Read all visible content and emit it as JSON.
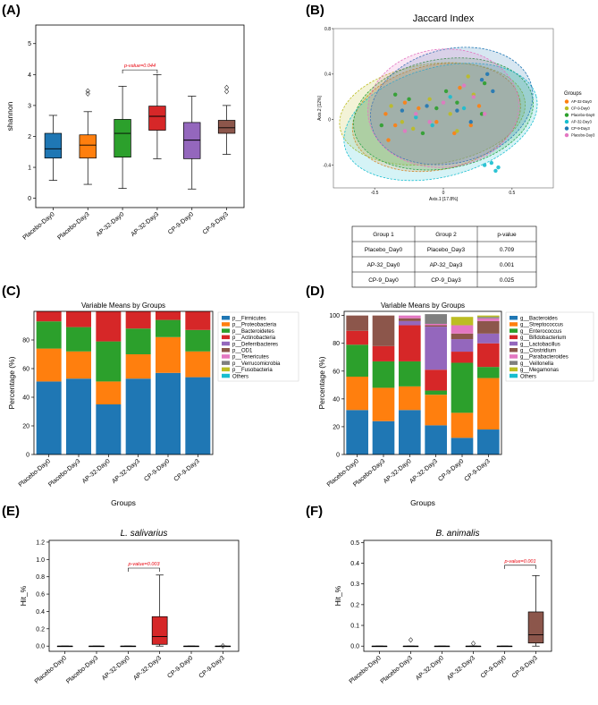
{
  "panel_labels": {
    "a": "(A)",
    "b": "(B)",
    "c": "(C)",
    "d": "(D)",
    "e": "(E)",
    "f": "(F)"
  },
  "groups": [
    "Placebo-Day0",
    "Placebo-Day3",
    "AP-32-Day0",
    "AP-32-Day3",
    "CP-9-Day0",
    "CP-9-Day3"
  ],
  "colors": {
    "blue": "#1f77b4",
    "orange": "#ff7f0e",
    "green": "#2ca02c",
    "red": "#d62728",
    "purple": "#9467bd",
    "brown": "#8c564b",
    "pink": "#e377c2",
    "gray": "#7f7f7f",
    "olive": "#bcbd22",
    "cyan": "#17becf",
    "pval": "#e8000b"
  },
  "chart_data": [
    {
      "id": "A",
      "type": "box",
      "ylabel": "shannon",
      "ylim": [
        -0.3,
        5.6
      ],
      "yticks": [
        0,
        1,
        2,
        3,
        4,
        5
      ],
      "categories": [
        "Placebo-Day0",
        "Placebo-Day3",
        "AP-32-Day0",
        "AP-32-Day3",
        "CP-9-Day0",
        "CP-9-Day3"
      ],
      "boxes": [
        {
          "whislo": 0.58,
          "q1": 1.3,
          "med": 1.6,
          "q3": 2.1,
          "whishi": 2.68,
          "fliers": []
        },
        {
          "whislo": 0.45,
          "q1": 1.3,
          "med": 1.72,
          "q3": 2.05,
          "whishi": 2.8,
          "fliers": [
            3.38,
            3.47
          ]
        },
        {
          "whislo": 0.32,
          "q1": 1.33,
          "med": 2.1,
          "q3": 2.55,
          "whishi": 3.62,
          "fliers": []
        },
        {
          "whislo": 1.28,
          "q1": 2.2,
          "med": 2.65,
          "q3": 2.98,
          "whishi": 4.0,
          "fliers": []
        },
        {
          "whislo": 0.3,
          "q1": 1.28,
          "med": 1.88,
          "q3": 2.45,
          "whishi": 3.3,
          "fliers": []
        },
        {
          "whislo": 1.42,
          "q1": 2.1,
          "med": 2.28,
          "q3": 2.52,
          "whishi": 3.0,
          "fliers": [
            3.45,
            3.58
          ]
        }
      ],
      "significance": {
        "from": 2,
        "to": 3,
        "y": 4.15,
        "label": "p-value=0.044"
      }
    },
    {
      "id": "B",
      "type": "scatter",
      "title": "Jaccard Index",
      "xlabel": "Axis.1  [17.8%]",
      "ylabel": "Axis.2  [12%]",
      "xlim": [
        -0.8,
        0.8
      ],
      "ylim": [
        -0.6,
        0.8
      ],
      "xticks": [
        -0.5,
        0,
        0.5
      ],
      "yticks": [
        -0.4,
        0,
        0.4,
        0.8
      ],
      "legend_title": "Groups",
      "series": [
        {
          "name": "AP-32-Day0",
          "values": [
            [
              -0.42,
              0.05
            ],
            [
              -0.35,
              -0.05
            ],
            [
              -0.18,
              0.1
            ],
            [
              -0.05,
              -0.02
            ],
            [
              0.12,
              0.28
            ],
            [
              0.2,
              -0.05
            ],
            [
              -0.28,
              0.15
            ],
            [
              0.08,
              -0.12
            ],
            [
              -0.4,
              -0.18
            ],
            [
              0.26,
              0.12
            ]
          ]
        },
        {
          "name": "CP-9-Day0",
          "values": [
            [
              -0.38,
              0.12
            ],
            [
              -0.22,
              -0.08
            ],
            [
              -0.1,
              0.18
            ],
            [
              0.05,
              0.05
            ],
            [
              0.18,
              0.38
            ],
            [
              -0.3,
              -0.02
            ],
            [
              0.1,
              -0.1
            ],
            [
              0.22,
              0.22
            ]
          ]
        },
        {
          "name": "Placebo-Day0",
          "values": [
            [
              -0.45,
              -0.05
            ],
            [
              -0.25,
              0.18
            ],
            [
              -0.05,
              0.1
            ],
            [
              0.1,
              0.15
            ],
            [
              0.3,
              0.32
            ],
            [
              -0.15,
              -0.12
            ],
            [
              0.28,
              0.05
            ],
            [
              -0.35,
              0.22
            ],
            [
              0.02,
              0.25
            ]
          ]
        },
        {
          "name": "AP-32-Day3",
          "values": [
            [
              0.35,
              -0.38
            ],
            [
              0.4,
              -0.42
            ],
            [
              0.38,
              -0.45
            ],
            [
              0.3,
              -0.4
            ],
            [
              -0.2,
              0.02
            ],
            [
              0.15,
              0.1
            ],
            [
              0.05,
              0.2
            ],
            [
              -0.08,
              -0.05
            ]
          ]
        },
        {
          "name": "CP-9-Day3",
          "values": [
            [
              0.32,
              0.4
            ],
            [
              0.28,
              0.35
            ],
            [
              0.1,
              0.08
            ],
            [
              -0.12,
              0.12
            ],
            [
              0.2,
              -0.02
            ],
            [
              0.36,
              0.25
            ],
            [
              -0.3,
              0.08
            ]
          ]
        },
        {
          "name": "Placebo-Day3",
          "values": [
            [
              -0.2,
              0.05
            ],
            [
              0.0,
              0.15
            ],
            [
              0.22,
              0.2
            ],
            [
              -0.1,
              -0.02
            ],
            [
              0.3,
              0.05
            ],
            [
              0.15,
              0.3
            ],
            [
              -0.28,
              -0.1
            ]
          ]
        }
      ],
      "ellipses": [
        {
          "name": "AP-32-Day0",
          "cx": -0.05,
          "cy": 0.02,
          "rx": 0.62,
          "ry": 0.46,
          "angle": -12
        },
        {
          "name": "CP-9-Day0",
          "cx": -0.08,
          "cy": 0.05,
          "rx": 0.68,
          "ry": 0.44,
          "angle": -8
        },
        {
          "name": "Placebo-Day0",
          "cx": 0.0,
          "cy": 0.05,
          "rx": 0.66,
          "ry": 0.48,
          "angle": -10
        },
        {
          "name": "AP-32-Day3",
          "cx": -0.02,
          "cy": -0.02,
          "rx": 0.72,
          "ry": 0.48,
          "angle": -15
        },
        {
          "name": "CP-9-Day3",
          "cx": 0.06,
          "cy": 0.12,
          "rx": 0.6,
          "ry": 0.5,
          "angle": -14
        },
        {
          "name": "Placebo-Day3",
          "cx": 0.0,
          "cy": 0.1,
          "rx": 0.55,
          "ry": 0.52,
          "angle": -5
        }
      ],
      "table": {
        "headers": [
          "Group 1",
          "Group 2",
          "p-value"
        ],
        "rows": [
          {
            "g1": "Placebo_Day0",
            "g2": "Placebo_Day3",
            "p": "0.709",
            "sig": false
          },
          {
            "g1": "AP-32_Day0",
            "g2": "AP-32_Day3",
            "p": "0.001",
            "sig": true
          },
          {
            "g1": "CP-9_Day0",
            "g2": "CP-9_Day3",
            "p": "0.025",
            "sig": true
          }
        ]
      }
    },
    {
      "id": "C",
      "type": "stacked_bar",
      "title": "Variable Means by Groups",
      "xlabel": "Groups",
      "ylabel": "Percentage (%)",
      "ylim": [
        0,
        100
      ],
      "yticks": [
        0,
        20,
        40,
        60,
        80
      ],
      "categories": [
        "Placebo-Day0",
        "Placebo-Day3",
        "AP-32-Day0",
        "AP-32-Day3",
        "CP-9-Day0",
        "CP-9-Day3"
      ],
      "series": [
        {
          "name": "p__Firmicutes",
          "values": [
            51,
            53,
            35,
            53,
            57,
            54
          ]
        },
        {
          "name": "p__Proteobacteria",
          "values": [
            23,
            19,
            16,
            17,
            25,
            18
          ]
        },
        {
          "name": "p__Bacteroidetes",
          "values": [
            19,
            17,
            28,
            18,
            12,
            15
          ]
        },
        {
          "name": "p__Actinobacteria",
          "values": [
            7,
            11,
            21,
            12,
            6,
            13
          ]
        },
        {
          "name": "p__Deferribacteres",
          "values": [
            0,
            0,
            0,
            0,
            0,
            0
          ]
        },
        {
          "name": "p__OD1",
          "values": [
            0,
            0,
            0,
            0,
            0,
            0
          ]
        },
        {
          "name": "p__Tenericutes",
          "values": [
            0,
            0,
            0,
            0,
            0,
            0
          ]
        },
        {
          "name": "p__Verrucomicrobia",
          "values": [
            0,
            0,
            0,
            0,
            0,
            0
          ]
        },
        {
          "name": "p__Fusobacteria",
          "values": [
            0,
            0,
            0,
            0,
            0,
            0
          ]
        },
        {
          "name": "Others",
          "values": [
            0,
            0,
            0,
            0,
            0,
            0
          ]
        }
      ]
    },
    {
      "id": "D",
      "type": "stacked_bar",
      "title": "Variable Means by Groups",
      "xlabel": "Groups",
      "ylabel": "Percentage (%)",
      "ylim": [
        0,
        103
      ],
      "yticks": [
        0,
        20,
        40,
        60,
        80,
        100
      ],
      "categories": [
        "Placebo-Day0",
        "Placebo-Day3",
        "AP-32-Day0",
        "AP-32-Day3",
        "CP-9-Day0",
        "CP-9-Day3"
      ],
      "series": [
        {
          "name": "g__Bacteroides",
          "values": [
            32,
            24,
            32,
            21,
            12,
            18
          ]
        },
        {
          "name": "g__Streptococcus",
          "values": [
            24,
            24,
            17,
            22,
            18,
            37
          ]
        },
        {
          "name": "g__Enterococcus",
          "values": [
            23,
            19,
            18,
            3,
            36,
            8
          ]
        },
        {
          "name": "g__Bifidobacterium",
          "values": [
            10,
            11,
            26,
            15,
            8,
            17
          ]
        },
        {
          "name": "g__Lactobacillus",
          "values": [
            0,
            0,
            3,
            31,
            9,
            7
          ]
        },
        {
          "name": "g__Clostridium",
          "values": [
            11,
            22,
            2,
            1,
            4,
            9
          ]
        },
        {
          "name": "g__Parabacteroides",
          "values": [
            0,
            0,
            2,
            1,
            6,
            2
          ]
        },
        {
          "name": "g__Veillonella",
          "values": [
            0,
            0,
            0,
            7,
            0,
            1
          ]
        },
        {
          "name": "g__Megamonas",
          "values": [
            0,
            0,
            0,
            0,
            6,
            1
          ]
        },
        {
          "name": "Others",
          "values": [
            0,
            0,
            0,
            0,
            0,
            0
          ]
        }
      ]
    },
    {
      "id": "E",
      "type": "box",
      "title": "L. salivarius",
      "ylabel": "Hit_%",
      "ylim": [
        -0.06,
        1.22
      ],
      "yticks": [
        0.0,
        0.2,
        0.4,
        0.6,
        0.8,
        1.0,
        1.2
      ],
      "ytick_labels": [
        "0.0",
        "0.2",
        "0.4",
        "0.6",
        "0.8",
        "1.0",
        "1.2"
      ],
      "categories": [
        "Placebo-Day0",
        "Placebo-Day3",
        "AP-32-Day0",
        "AP-32-Day3",
        "CP-9-Day0",
        "CP-9-Day3"
      ],
      "boxes": [
        {
          "whislo": 0,
          "q1": 0,
          "med": 0,
          "q3": 0,
          "whishi": 0,
          "fliers": []
        },
        {
          "whislo": 0,
          "q1": 0,
          "med": 0,
          "q3": 0,
          "whishi": 0,
          "fliers": []
        },
        {
          "whislo": 0,
          "q1": 0,
          "med": 0,
          "q3": 0,
          "whishi": 0,
          "fliers": []
        },
        {
          "whislo": 0,
          "q1": 0.02,
          "med": 0.11,
          "q3": 0.34,
          "whishi": 0.82,
          "fliers": []
        },
        {
          "whislo": 0,
          "q1": 0,
          "med": 0,
          "q3": 0,
          "whishi": 0,
          "fliers": []
        },
        {
          "whislo": 0,
          "q1": 0,
          "med": 0,
          "q3": 0,
          "whishi": 0,
          "fliers": [
            0.003
          ]
        }
      ],
      "significance": {
        "from": 2,
        "to": 3,
        "y": 0.9,
        "label": "p-value=0.003"
      }
    },
    {
      "id": "F",
      "type": "box",
      "title": "B. animalis",
      "ylabel": "Hit_%",
      "ylim": [
        -0.025,
        0.51
      ],
      "yticks": [
        0.0,
        0.1,
        0.2,
        0.3,
        0.4,
        0.5
      ],
      "ytick_labels": [
        "0.0",
        "0.1",
        "0.2",
        "0.3",
        "0.4",
        "0.5"
      ],
      "categories": [
        "Placebo-Day0",
        "Placebo-Day3",
        "AP-32-Day0",
        "AP-32-Day3",
        "CP-9-Day0",
        "CP-9-Day3"
      ],
      "boxes": [
        {
          "whislo": 0,
          "q1": 0,
          "med": 0,
          "q3": 0,
          "whishi": 0,
          "fliers": []
        },
        {
          "whislo": 0,
          "q1": 0,
          "med": 0,
          "q3": 0,
          "whishi": 0,
          "fliers": [
            0.03
          ]
        },
        {
          "whislo": 0,
          "q1": 0,
          "med": 0,
          "q3": 0,
          "whishi": 0,
          "fliers": []
        },
        {
          "whislo": 0,
          "q1": 0,
          "med": 0,
          "q3": 0,
          "whishi": 0,
          "fliers": [
            0.013
          ]
        },
        {
          "whislo": 0,
          "q1": 0,
          "med": 0,
          "q3": 0,
          "whishi": 0,
          "fliers": []
        },
        {
          "whislo": 0,
          "q1": 0.015,
          "med": 0.055,
          "q3": 0.165,
          "whishi": 0.34,
          "fliers": []
        }
      ],
      "significance": {
        "from": 4,
        "to": 5,
        "y": 0.39,
        "label": "p-value=0.001"
      }
    }
  ]
}
